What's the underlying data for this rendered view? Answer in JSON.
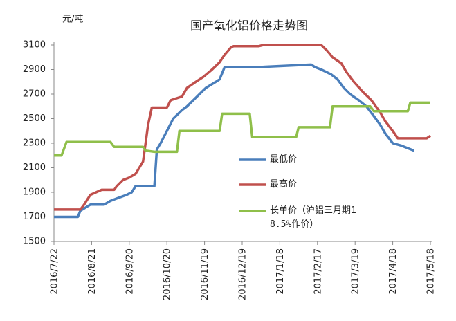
{
  "chart_data": {
    "type": "line",
    "title": "国产氧化铝价格走势图",
    "y_label": "元/吨",
    "xlim": [
      "2016/7/22",
      "2017/5/18"
    ],
    "xticks": [
      "2016/7/22",
      "2016/8/21",
      "2016/9/20",
      "2016/10/20",
      "2016/11/19",
      "2016/12/19",
      "2017/1/18",
      "2017/2/17",
      "2017/3/19",
      "2017/4/18",
      "2017/5/18"
    ],
    "ylim": [
      1500,
      3100
    ],
    "yticks": [
      1500,
      1700,
      1900,
      2100,
      2300,
      2500,
      2700,
      2900,
      3100
    ],
    "grid": false,
    "series": [
      {
        "name": "最低价",
        "color": "#4a7ebb",
        "x": [
          "2016/7/22",
          "2016/8/10",
          "2016/8/12",
          "2016/8/20",
          "2016/8/31",
          "2016/9/5",
          "2016/9/10",
          "2016/9/18",
          "2016/9/22",
          "2016/9/25",
          "2016/10/10",
          "2016/10/12",
          "2016/10/15",
          "2016/10/20",
          "2016/10/25",
          "2016/11/1",
          "2016/11/5",
          "2016/11/10",
          "2016/11/15",
          "2016/11/20",
          "2016/11/28",
          "2016/12/1",
          "2016/12/5",
          "2017/1/1",
          "2017/2/12",
          "2017/2/15",
          "2017/2/20",
          "2017/2/28",
          "2017/3/5",
          "2017/3/10",
          "2017/3/15",
          "2017/3/22",
          "2017/3/28",
          "2017/4/3",
          "2017/4/8",
          "2017/4/12",
          "2017/4/18",
          "2017/4/25",
          "2017/5/5"
        ],
        "values": [
          1700,
          1700,
          1750,
          1800,
          1800,
          1830,
          1850,
          1880,
          1900,
          1950,
          1950,
          2250,
          2300,
          2400,
          2500,
          2570,
          2600,
          2650,
          2700,
          2750,
          2800,
          2820,
          2920,
          2920,
          2940,
          2920,
          2900,
          2860,
          2820,
          2750,
          2700,
          2650,
          2600,
          2520,
          2450,
          2380,
          2300,
          2280,
          2240
        ]
      },
      {
        "name": "最高价",
        "color": "#c0504d",
        "x": [
          "2016/7/22",
          "2016/8/12",
          "2016/8/15",
          "2016/8/20",
          "2016/8/29",
          "2016/9/8",
          "2016/9/10",
          "2016/9/15",
          "2016/9/20",
          "2016/9/25",
          "2016/9/28",
          "2016/10/1",
          "2016/10/3",
          "2016/10/5",
          "2016/10/8",
          "2016/10/20",
          "2016/10/23",
          "2016/11/1",
          "2016/11/5",
          "2016/11/12",
          "2016/11/18",
          "2016/11/25",
          "2016/12/1",
          "2016/12/5",
          "2016/12/10",
          "2016/12/12",
          "2017/1/1",
          "2017/1/5",
          "2017/2/20",
          "2017/2/25",
          "2017/3/1",
          "2017/3/8",
          "2017/3/12",
          "2017/3/18",
          "2017/3/25",
          "2017/4/1",
          "2017/4/8",
          "2017/4/12",
          "2017/4/18",
          "2017/4/22",
          "2017/5/15",
          "2017/5/18"
        ],
        "values": [
          1760,
          1760,
          1800,
          1880,
          1920,
          1920,
          1950,
          2000,
          2020,
          2050,
          2100,
          2150,
          2300,
          2450,
          2590,
          2590,
          2650,
          2680,
          2750,
          2800,
          2840,
          2900,
          2960,
          3020,
          3080,
          3090,
          3090,
          3100,
          3100,
          3050,
          3000,
          2950,
          2880,
          2800,
          2720,
          2650,
          2550,
          2480,
          2400,
          2340,
          2340,
          2360
        ]
      },
      {
        "name": "长单价（沪铝三月期18.5%作价）",
        "color": "#8fbf4a",
        "x": [
          "2016/7/22",
          "2016/7/28",
          "2016/8/1",
          "2016/9/5",
          "2016/9/8",
          "2016/10/1",
          "2016/10/3",
          "2016/10/10",
          "2016/10/28",
          "2016/10/30",
          "2016/12/1",
          "2016/12/3",
          "2016/12/25",
          "2016/12/27",
          "2017/1/31",
          "2017/2/2",
          "2017/2/27",
          "2017/3/1",
          "2017/3/31",
          "2017/4/3",
          "2017/4/30",
          "2017/5/2",
          "2017/5/18"
        ],
        "values": [
          2200,
          2200,
          2310,
          2310,
          2270,
          2270,
          2240,
          2230,
          2230,
          2400,
          2400,
          2540,
          2540,
          2350,
          2350,
          2430,
          2430,
          2600,
          2600,
          2560,
          2560,
          2630,
          2630
        ]
      }
    ]
  }
}
